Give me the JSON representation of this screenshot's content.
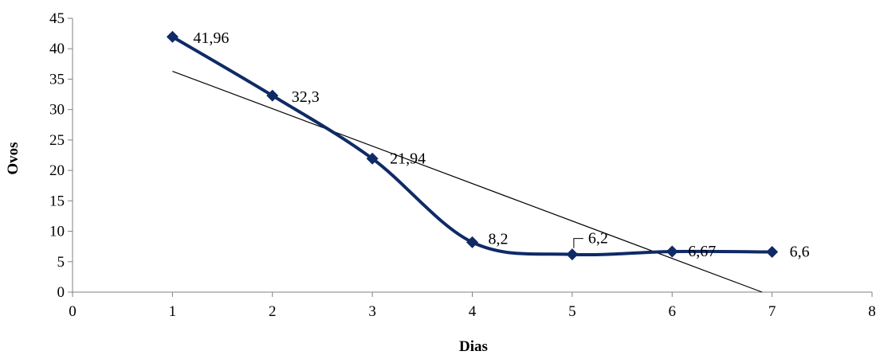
{
  "chart_data": {
    "type": "line",
    "title": "",
    "xlabel": "Dias",
    "ylabel": "Ovos",
    "xlim": [
      0,
      8
    ],
    "ylim": [
      0,
      45
    ],
    "xticks": [
      0,
      1,
      2,
      3,
      4,
      5,
      6,
      7,
      8
    ],
    "yticks": [
      0,
      5,
      10,
      15,
      20,
      25,
      30,
      35,
      40,
      45
    ],
    "grid": false,
    "legend": "none",
    "series": [
      {
        "x": [
          1,
          2,
          3,
          4,
          5,
          6,
          7
        ],
        "y": [
          41.96,
          32.3,
          21.94,
          8.2,
          6.2,
          6.67,
          6.6
        ],
        "labels": [
          "41,96",
          "32,3",
          "21,94",
          "8,2",
          "6,2",
          "6,67",
          "6,6"
        ],
        "color": "#0f2a66",
        "smooth": true,
        "marker": "diamond"
      }
    ],
    "trendline": {
      "type": "linear",
      "x_start": 1,
      "y_start": 36.3,
      "x_end": 6.9,
      "y_end": 0,
      "color": "#000000"
    }
  }
}
